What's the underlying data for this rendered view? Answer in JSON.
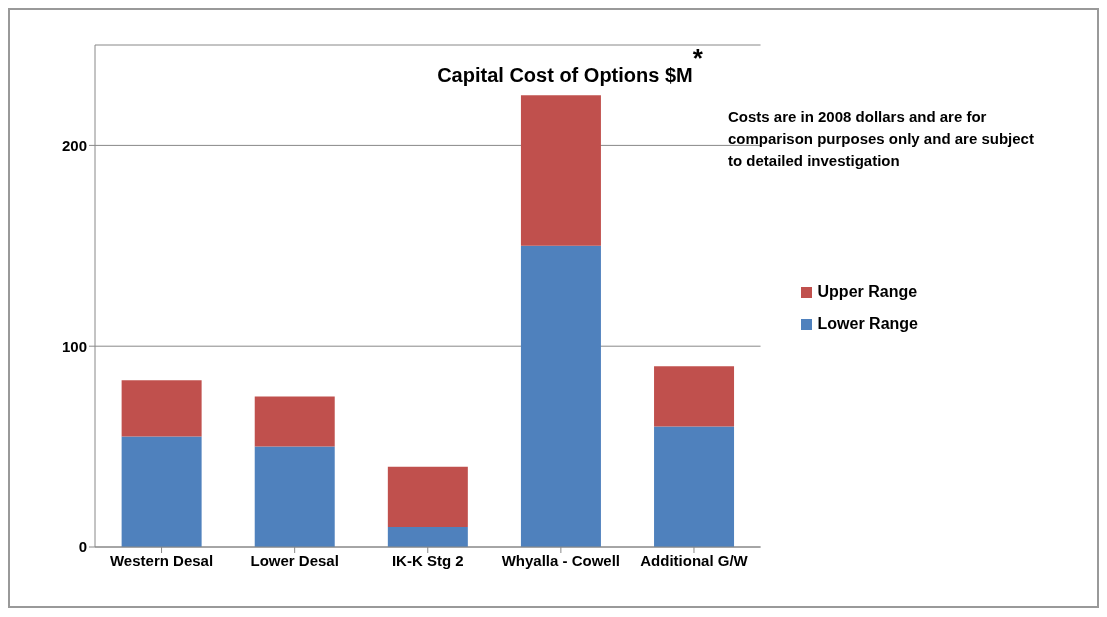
{
  "chart_data": {
    "type": "bar",
    "title": "Capital Cost of Options $M$^{*}$",
    "stacked": true,
    "categories": [
      "Western Desal",
      "Lower Desal",
      "IK-K Stg 2",
      "Whyalla - Cowell",
      "Additional G/W"
    ],
    "series": [
      {
        "name": "Lower Range",
        "color": "#4f81bd",
        "values": [
          55,
          50,
          10,
          150,
          60
        ]
      },
      {
        "name": "Upper Range",
        "color": "#c0504d",
        "values": [
          28,
          25,
          30,
          75,
          30
        ]
      }
    ],
    "ylim": [
      0,
      250
    ],
    "yticks": [
      0,
      100,
      200
    ],
    "grid": "y",
    "legend": "right",
    "annotations": [
      "Costs are  in 2008 dollars and are for comparison purposes only and are subject to detailed investigation"
    ]
  }
}
